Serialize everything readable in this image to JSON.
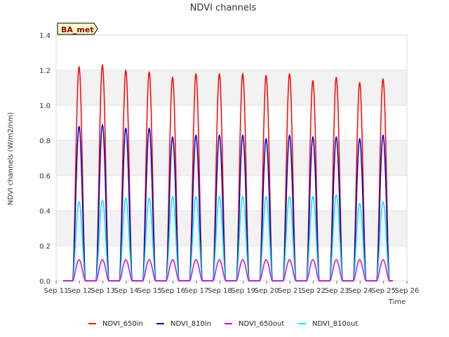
{
  "chart_data": {
    "type": "line",
    "title": "NDVI channels",
    "xlabel": "Time",
    "ylabel": "NDVI channels (W/m2/nm)",
    "badge": "BA_met",
    "ylim": [
      0.0,
      1.4
    ],
    "yticks": [
      "0.0",
      "0.2",
      "0.4",
      "0.6",
      "0.8",
      "1.0",
      "1.2",
      "1.4"
    ],
    "xlim_days": [
      11,
      26
    ],
    "xticks": [
      "Sep 11",
      "Sep 12",
      "Sep 13",
      "Sep 14",
      "Sep 15",
      "Sep 16",
      "Sep 17",
      "Sep 18",
      "Sep 19",
      "Sep 20",
      "Sep 21",
      "Sep 22",
      "Sep 23",
      "Sep 24",
      "Sep 25",
      "Sep 26"
    ],
    "x_unit": "day of September (daily peaks near local noon)",
    "peak_days": [
      12,
      13,
      14,
      15,
      16,
      17,
      18,
      19,
      20,
      21,
      22,
      23,
      24,
      25
    ],
    "series": [
      {
        "name": "NDVI_650in",
        "color": "#ff0000",
        "daily_peaks": [
          1.22,
          1.23,
          1.2,
          1.19,
          1.16,
          1.18,
          1.18,
          1.18,
          1.17,
          1.18,
          1.14,
          1.16,
          1.13,
          1.15
        ]
      },
      {
        "name": "NDVI_810in",
        "color": "#0000cc",
        "daily_peaks": [
          0.88,
          0.89,
          0.87,
          0.87,
          0.82,
          0.83,
          0.83,
          0.83,
          0.81,
          0.83,
          0.82,
          0.82,
          0.81,
          0.83
        ]
      },
      {
        "name": "NDVI_650out",
        "color": "#dd00dd",
        "daily_peaks": [
          0.12,
          0.12,
          0.12,
          0.12,
          0.12,
          0.12,
          0.12,
          0.12,
          0.12,
          0.12,
          0.12,
          0.12,
          0.12,
          0.12
        ]
      },
      {
        "name": "NDVI_810out",
        "color": "#00e5ee",
        "daily_peaks": [
          0.45,
          0.46,
          0.47,
          0.47,
          0.48,
          0.48,
          0.48,
          0.48,
          0.48,
          0.48,
          0.48,
          0.49,
          0.44,
          0.45
        ]
      }
    ]
  }
}
